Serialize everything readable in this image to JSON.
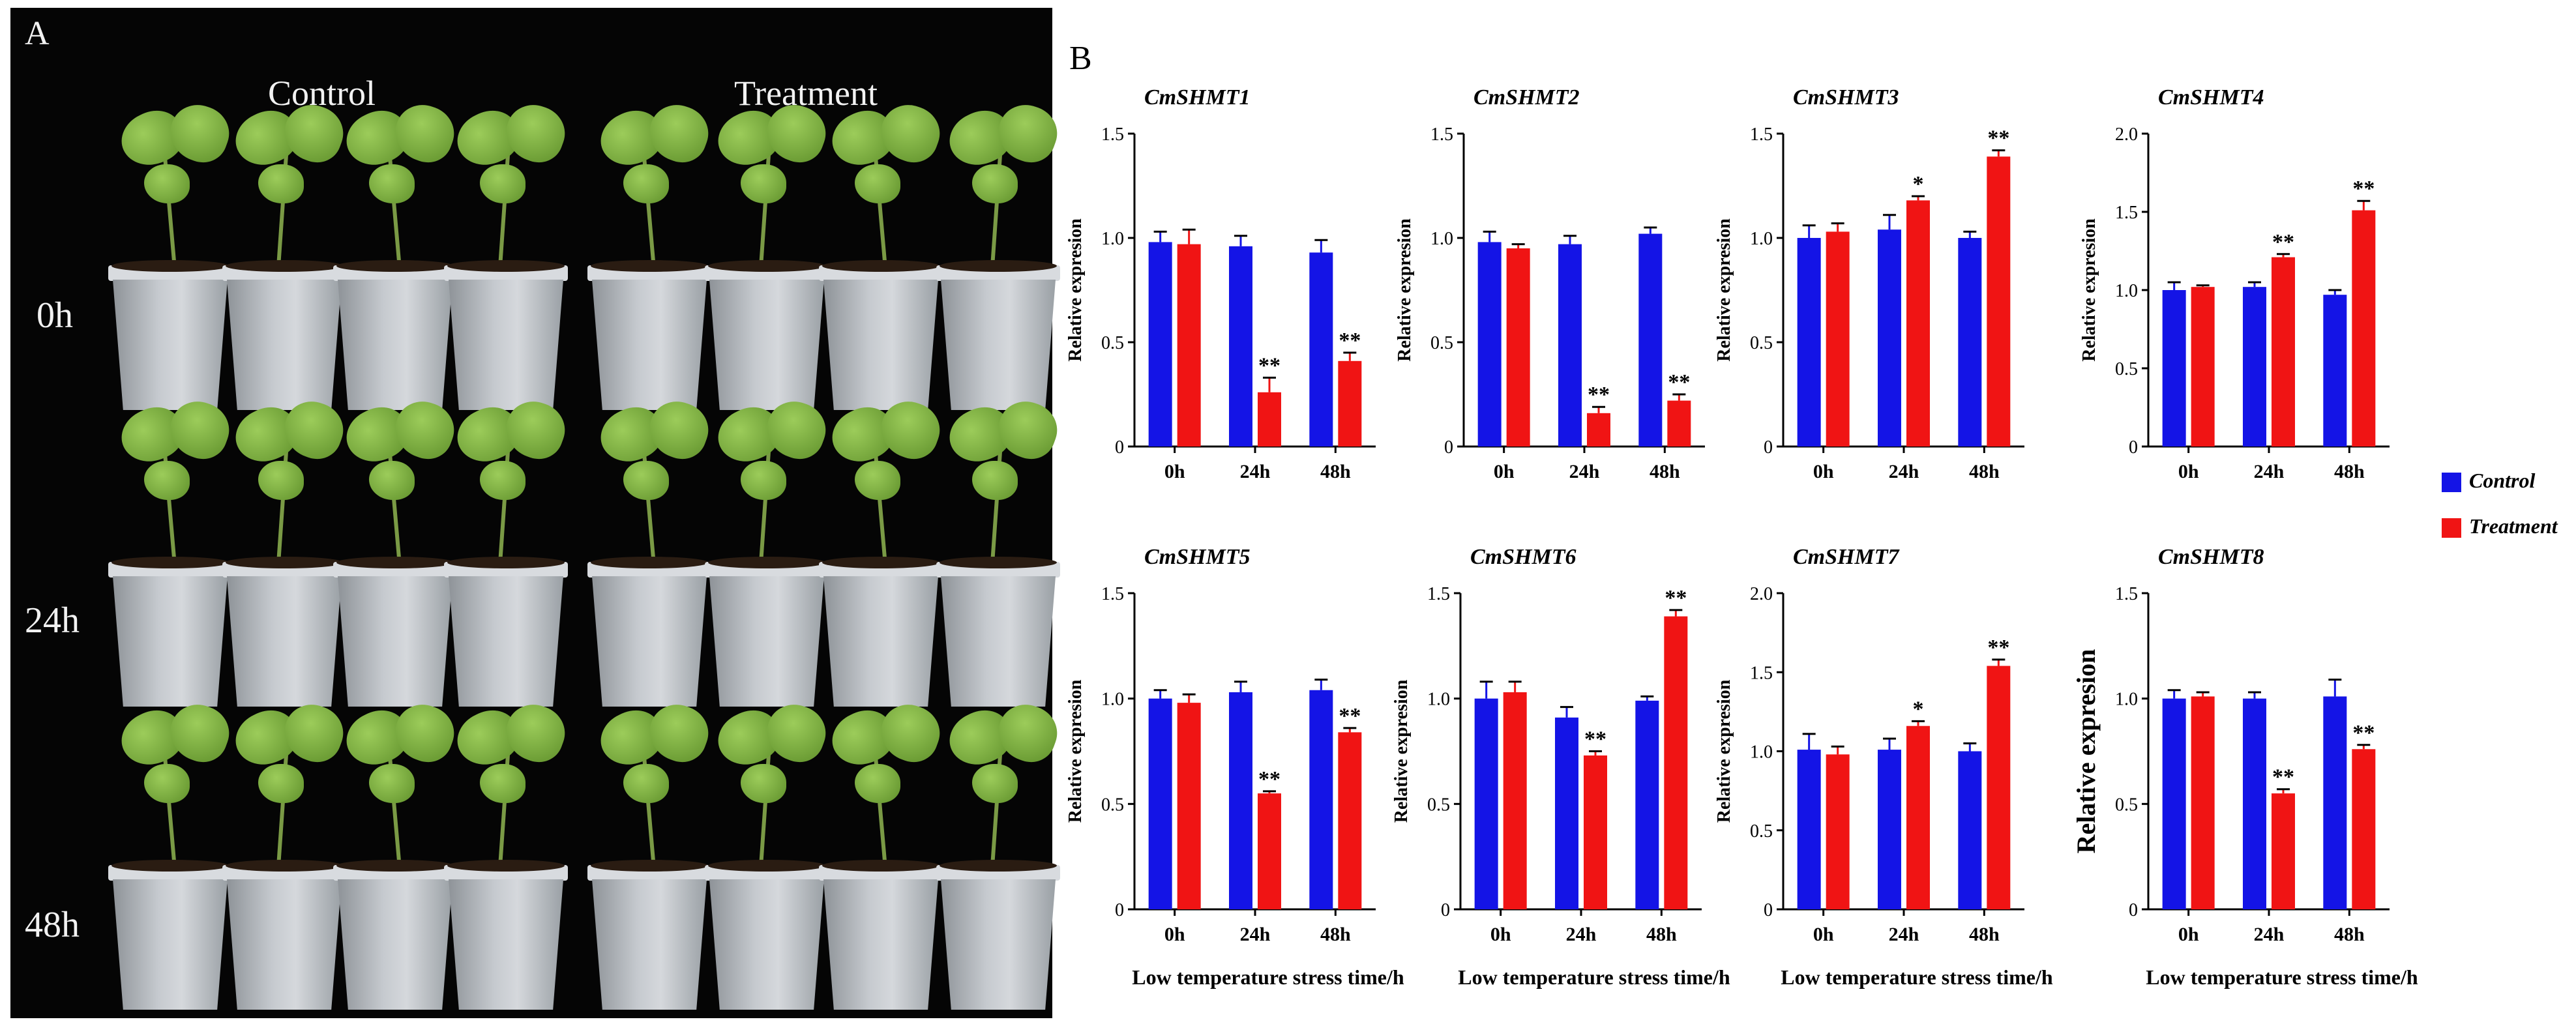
{
  "panel_a": {
    "label": "A",
    "columns": [
      "Control",
      "Treatment"
    ],
    "rows": [
      "0h",
      "24h",
      "48h"
    ]
  },
  "panel_b": {
    "label": "B"
  },
  "legend": {
    "control": "Control",
    "treatment": "Treatment"
  },
  "colors": {
    "control": "#1414e6",
    "treatment": "#f01414"
  },
  "chart_data": [
    {
      "type": "bar",
      "title": "CmSHMT1",
      "ylabel": "Relative expresion",
      "xlabel": "",
      "ylim": [
        0,
        1.5
      ],
      "yticks": [
        "0",
        "0.5",
        "1.0",
        "1.5"
      ],
      "categories": [
        "0h",
        "24h",
        "48h"
      ],
      "series": [
        {
          "name": "Control",
          "values": [
            0.98,
            0.96,
            0.93
          ],
          "errors": [
            0.05,
            0.05,
            0.06
          ]
        },
        {
          "name": "Treatment",
          "values": [
            0.97,
            0.26,
            0.41
          ],
          "errors": [
            0.07,
            0.07,
            0.04
          ]
        }
      ],
      "annotations": [
        "",
        "**",
        "**"
      ]
    },
    {
      "type": "bar",
      "title": "CmSHMT2",
      "ylabel": "Relative expresion",
      "xlabel": "",
      "ylim": [
        0,
        1.5
      ],
      "yticks": [
        "0",
        "0.5",
        "1.0",
        "1.5"
      ],
      "categories": [
        "0h",
        "24h",
        "48h"
      ],
      "series": [
        {
          "name": "Control",
          "values": [
            0.98,
            0.97,
            1.02
          ],
          "errors": [
            0.05,
            0.04,
            0.03
          ]
        },
        {
          "name": "Treatment",
          "values": [
            0.95,
            0.16,
            0.22
          ],
          "errors": [
            0.02,
            0.03,
            0.03
          ]
        }
      ],
      "annotations": [
        "",
        "**",
        "**"
      ]
    },
    {
      "type": "bar",
      "title": "CmSHMT3",
      "ylabel": "Relative expresion",
      "xlabel": "",
      "ylim": [
        0,
        1.5
      ],
      "yticks": [
        "0",
        "0.5",
        "1.0",
        "1.5"
      ],
      "categories": [
        "0h",
        "24h",
        "48h"
      ],
      "series": [
        {
          "name": "Control",
          "values": [
            1.0,
            1.04,
            1.0
          ],
          "errors": [
            0.06,
            0.07,
            0.03
          ]
        },
        {
          "name": "Treatment",
          "values": [
            1.03,
            1.18,
            1.39
          ],
          "errors": [
            0.04,
            0.02,
            0.03
          ]
        }
      ],
      "annotations": [
        "",
        "*",
        "**"
      ]
    },
    {
      "type": "bar",
      "title": "CmSHMT4",
      "ylabel": "Relative expresion",
      "xlabel": "",
      "ylim": [
        0,
        2.0
      ],
      "yticks": [
        "0",
        "0.5",
        "1.0",
        "1.5",
        "2.0"
      ],
      "categories": [
        "0h",
        "24h",
        "48h"
      ],
      "series": [
        {
          "name": "Control",
          "values": [
            1.0,
            1.02,
            0.97
          ],
          "errors": [
            0.05,
            0.03,
            0.03
          ]
        },
        {
          "name": "Treatment",
          "values": [
            1.02,
            1.21,
            1.51
          ],
          "errors": [
            0.01,
            0.02,
            0.06
          ]
        }
      ],
      "annotations": [
        "",
        "**",
        "**"
      ]
    },
    {
      "type": "bar",
      "title": "CmSHMT5",
      "ylabel": "Relative expresion",
      "xlabel": "Low temperature stress time/h",
      "ylim": [
        0,
        1.5
      ],
      "yticks": [
        "0",
        "0.5",
        "1.0",
        "1.5"
      ],
      "categories": [
        "0h",
        "24h",
        "48h"
      ],
      "series": [
        {
          "name": "Control",
          "values": [
            1.0,
            1.03,
            1.04
          ],
          "errors": [
            0.04,
            0.05,
            0.05
          ]
        },
        {
          "name": "Treatment",
          "values": [
            0.98,
            0.55,
            0.84
          ],
          "errors": [
            0.04,
            0.01,
            0.02
          ]
        }
      ],
      "annotations": [
        "",
        "**",
        "**"
      ]
    },
    {
      "type": "bar",
      "title": "CmSHMT6",
      "ylabel": "Relative expresion",
      "xlabel": "Low temperature stress time/h",
      "ylim": [
        0,
        1.5
      ],
      "yticks": [
        "0",
        "0.5",
        "1.0",
        "1.5"
      ],
      "categories": [
        "0h",
        "24h",
        "48h"
      ],
      "series": [
        {
          "name": "Control",
          "values": [
            1.0,
            0.91,
            0.99
          ],
          "errors": [
            0.08,
            0.05,
            0.02
          ]
        },
        {
          "name": "Treatment",
          "values": [
            1.03,
            0.73,
            1.39
          ],
          "errors": [
            0.05,
            0.02,
            0.03
          ]
        }
      ],
      "annotations": [
        "",
        "**",
        "**"
      ]
    },
    {
      "type": "bar",
      "title": "CmSHMT7",
      "ylabel": "Relative expresion",
      "xlabel": "Low temperature stress time/h",
      "ylim": [
        0,
        2.0
      ],
      "yticks": [
        "0",
        "0.5",
        "1.0",
        "1.5",
        "2.0"
      ],
      "categories": [
        "0h",
        "24h",
        "48h"
      ],
      "series": [
        {
          "name": "Control",
          "values": [
            1.01,
            1.01,
            1.0
          ],
          "errors": [
            0.1,
            0.07,
            0.05
          ]
        },
        {
          "name": "Treatment",
          "values": [
            0.98,
            1.16,
            1.54
          ],
          "errors": [
            0.05,
            0.03,
            0.04
          ]
        }
      ],
      "annotations": [
        "",
        "*",
        "**"
      ]
    },
    {
      "type": "bar",
      "title": "CmSHMT8",
      "ylabel": "Relative expresion",
      "xlabel": "Low temperature stress time/h",
      "ylim": [
        0,
        1.5
      ],
      "yticks": [
        "0",
        "0.5",
        "1.0",
        "1.5"
      ],
      "categories": [
        "0h",
        "24h",
        "48h"
      ],
      "series": [
        {
          "name": "Control",
          "values": [
            1.0,
            1.0,
            1.01
          ],
          "errors": [
            0.04,
            0.03,
            0.08
          ]
        },
        {
          "name": "Treatment",
          "values": [
            1.01,
            0.55,
            0.76
          ],
          "errors": [
            0.02,
            0.02,
            0.02
          ]
        }
      ],
      "annotations": [
        "",
        "**",
        "**"
      ]
    }
  ]
}
